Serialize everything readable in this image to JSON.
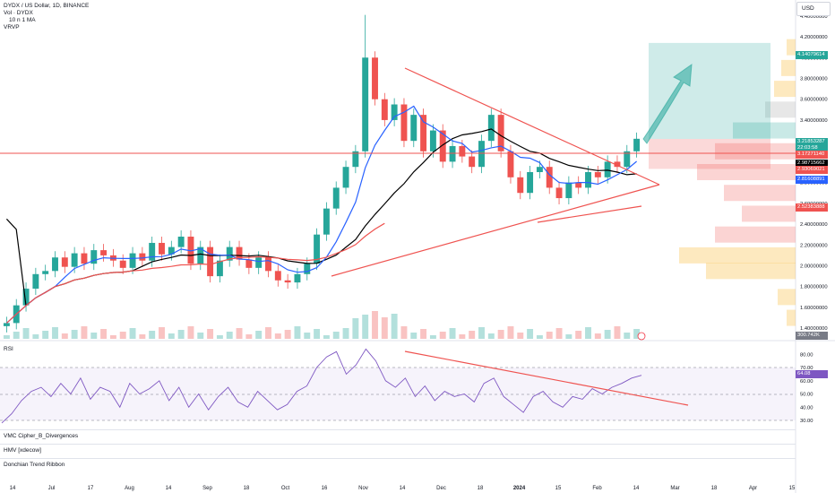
{
  "header": {
    "title": "DYDX / US Dollar, 1D, BINANCE",
    "vol_label": "Vol · DYDX",
    "ma_label": "10 n 1 MA",
    "vrvp_label": "VRVP",
    "currency": "USD"
  },
  "indicators": {
    "rsi": "RSI",
    "vmc": "VMC Cipher_B_Divergences",
    "hmv": "HMV [xdecow]",
    "donchian": "Donchian Trend Ribbon"
  },
  "axis": {
    "price_ticks": [
      "4.40000000",
      "4.20000000",
      "4.00000000",
      "3.80000000",
      "3.60000000",
      "3.40000000",
      "3.20000000",
      "3.00000000",
      "2.80000000",
      "2.60000000",
      "2.40000000",
      "2.20000000",
      "2.00000000",
      "1.80000000",
      "1.60000000",
      "1.40000000",
      "1.20000000"
    ],
    "rsi_ticks": [
      "80.00",
      "70.00",
      "60.00",
      "50.00",
      "40.00",
      "30.00"
    ],
    "time_ticks": [
      "14",
      "Jul",
      "17",
      "Aug",
      "14",
      "Sep",
      "18",
      "Oct",
      "16",
      "Nov",
      "14",
      "Dec",
      "18",
      "2024",
      "15",
      "Feb",
      "14",
      "Mar",
      "18",
      "Apr",
      "15"
    ]
  },
  "price_tags": [
    {
      "text": "4.14079614",
      "color": "#26a69a"
    },
    {
      "text": "3.21853287",
      "color": "#26a69a"
    },
    {
      "text": "22:03:58",
      "color": "#26a69a"
    },
    {
      "text": "3.17271140",
      "color": "#ef5350"
    },
    {
      "text": "2.98715662",
      "color": "#000000"
    },
    {
      "text": "2.93069021",
      "color": "#ef5350"
    },
    {
      "text": "2.81608891",
      "color": "#2962ff"
    },
    {
      "text": "2.52383888",
      "color": "#ef5350"
    },
    {
      "text": "300.742K",
      "color": "#787b86"
    },
    {
      "text": "64.08",
      "color": "#7e57c2"
    }
  ],
  "chart_data": {
    "type": "candlestick",
    "title": "DYDX / US Dollar, 1D, BINANCE",
    "ylim": [
      1.35,
      4.45
    ],
    "x": [
      "Jun 14",
      "Jul",
      "Jul 17",
      "Aug",
      "Aug 14",
      "Sep",
      "Sep 18",
      "Oct",
      "Oct 16",
      "Nov",
      "Nov 14",
      "Dec",
      "Dec 18",
      "2024",
      "Jan 15",
      "Feb",
      "Feb 14",
      "Mar",
      "Mar 18",
      "Apr",
      "Apr 15"
    ],
    "close_series": [
      1.45,
      1.62,
      1.78,
      1.92,
      1.95,
      2.08,
      1.99,
      2.12,
      2.02,
      2.15,
      2.1,
      2.05,
      1.98,
      2.12,
      2.05,
      2.22,
      2.11,
      2.18,
      2.28,
      2.02,
      2.18,
      1.9,
      2.05,
      2.18,
      2.06,
      1.98,
      2.08,
      1.95,
      1.86,
      1.84,
      1.92,
      2.02,
      2.3,
      2.55,
      2.75,
      2.95,
      3.1,
      4.0,
      3.6,
      3.4,
      3.55,
      3.2,
      3.45,
      3.1,
      3.3,
      3.0,
      3.15,
      3.05,
      2.95,
      3.2,
      3.45,
      3.1,
      2.85,
      2.7,
      2.9,
      2.95,
      2.75,
      2.65,
      2.8,
      2.75,
      2.9,
      2.85,
      3.0,
      2.95,
      3.1,
      3.22
    ],
    "last_price": 3.21853287,
    "resistance_horizontal": 3.1727114,
    "target_price": 4.14079614,
    "moving_averages": [
      {
        "value": 2.98715662
      },
      {
        "value": 2.81608891
      }
    ],
    "rsi": {
      "ylim": [
        25,
        88
      ],
      "values": [
        28,
        35,
        45,
        52,
        55,
        48,
        58,
        50,
        62,
        46,
        55,
        52,
        40,
        58,
        50,
        54,
        60,
        45,
        55,
        40,
        50,
        38,
        48,
        55,
        44,
        40,
        52,
        45,
        38,
        42,
        52,
        56,
        70,
        78,
        82,
        65,
        72,
        84,
        75,
        60,
        55,
        62,
        48,
        56,
        45,
        52,
        48,
        50,
        44,
        58,
        62,
        48,
        42,
        36,
        48,
        52,
        44,
        40,
        48,
        46,
        54,
        50,
        55,
        58,
        62,
        64.08
      ],
      "last": 64.08,
      "levels": [
        70,
        50,
        30
      ]
    },
    "volume_last": "300.742K"
  }
}
